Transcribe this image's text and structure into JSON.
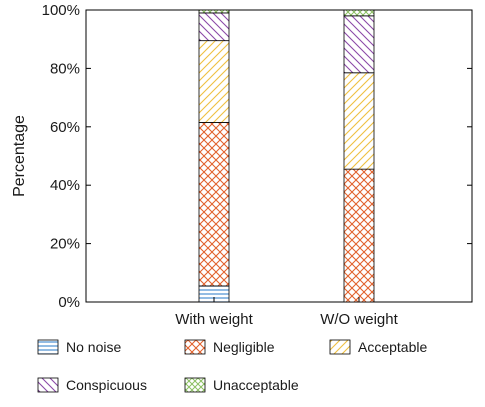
{
  "chart_data": {
    "type": "bar",
    "stacked": true,
    "categories": [
      "With weight",
      "W/O weight"
    ],
    "ylabel": "Percentage",
    "ylim": [
      0,
      100
    ],
    "yticks": [
      "0%",
      "20%",
      "40%",
      "60%",
      "80%",
      "100%"
    ],
    "legend_position": "bottom",
    "series": [
      {
        "name": "No noise",
        "values": [
          5.5,
          0
        ],
        "color": "#4b8fd1",
        "pattern": "horizontal-lines"
      },
      {
        "name": "Negligible",
        "values": [
          56,
          45.5
        ],
        "color": "#e2622d",
        "pattern": "crosshatch"
      },
      {
        "name": "Acceptable",
        "values": [
          28,
          33
        ],
        "color": "#f0c040",
        "pattern": "forward-diagonal"
      },
      {
        "name": "Conspicuous",
        "values": [
          9.5,
          19.5
        ],
        "color": "#8b4aa8",
        "pattern": "back-diagonal"
      },
      {
        "name": "Unacceptable",
        "values": [
          1,
          2
        ],
        "color": "#8cc063",
        "pattern": "crosshatch"
      }
    ]
  }
}
